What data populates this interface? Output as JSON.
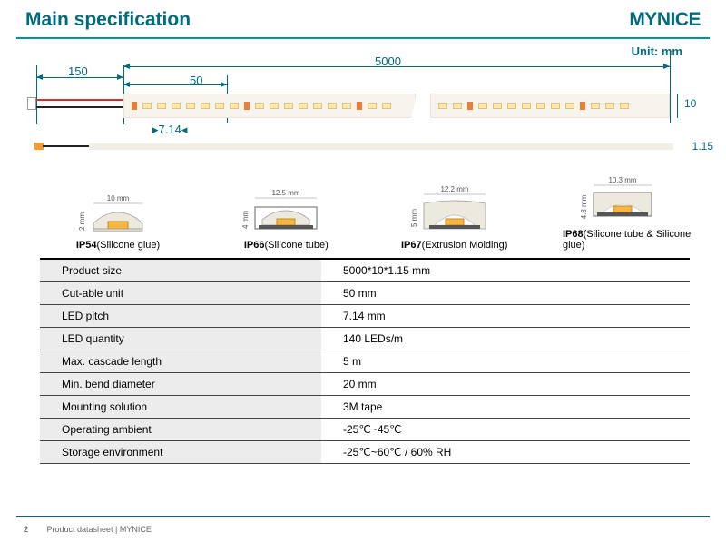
{
  "header": {
    "title": "Main specification",
    "brand": "MYNICE"
  },
  "diagram": {
    "unit": "Unit: mm",
    "dims": {
      "cable": "150",
      "total": "5000",
      "cut": "50",
      "pitch": "7.14",
      "height": "10",
      "thickness": "1.15"
    }
  },
  "cross": [
    {
      "w": "10 mm",
      "h": "2 mm",
      "rating": "IP54",
      "desc": "(Silicone glue)"
    },
    {
      "w": "12.5 mm",
      "h": "4 mm",
      "rating": "IP66",
      "desc": "(Silicone tube)"
    },
    {
      "w": "12.2 mm",
      "h": "5 mm",
      "rating": "IP67",
      "desc": "(Extrusion Molding)"
    },
    {
      "w": "10.3 mm",
      "h": "4.3 mm",
      "rating": "IP68",
      "desc": "(Silicone tube & Silicone glue)"
    }
  ],
  "specs": [
    {
      "k": "Product size",
      "v": "5000*10*1.15 mm"
    },
    {
      "k": "Cut-able unit",
      "v": "50 mm"
    },
    {
      "k": "LED pitch",
      "v": "7.14 mm"
    },
    {
      "k": "LED quantity",
      "v": "140 LEDs/m"
    },
    {
      "k": "Max. cascade length",
      "v": "5 m"
    },
    {
      "k": "Min. bend diameter",
      "v": "20 mm"
    },
    {
      "k": "Mounting solution",
      "v": "3M tape"
    },
    {
      "k": "Operating ambient",
      "v": "-25℃~45℃"
    },
    {
      "k": "Storage environment",
      "v": "-25℃~60℃ / 60% RH"
    }
  ],
  "footer": {
    "page": "2",
    "text": "Product datasheet | MYNICE"
  },
  "colors": {
    "teal": "#006b7f",
    "rule": "#00929f"
  }
}
